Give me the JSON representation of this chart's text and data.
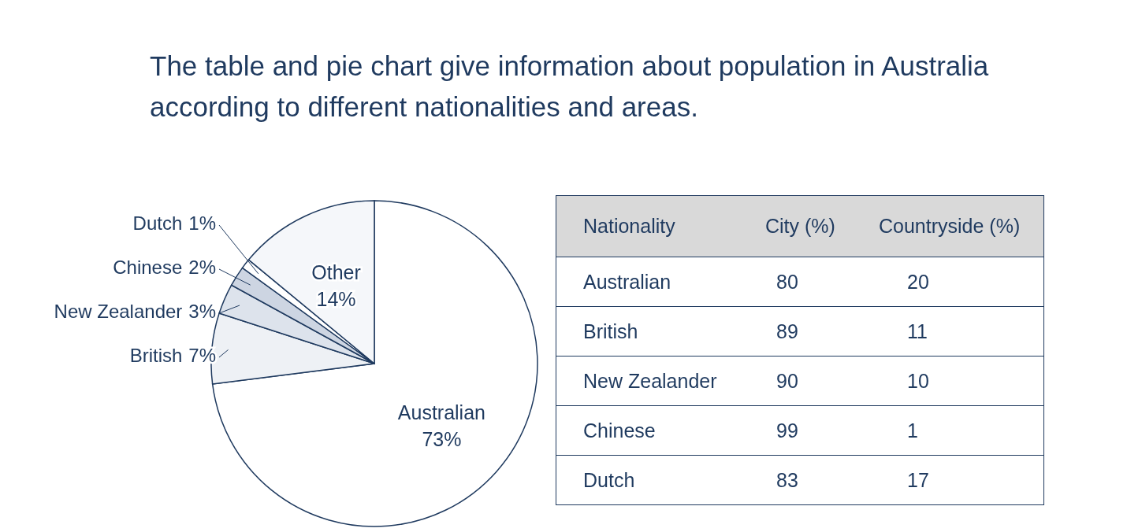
{
  "chart_data": [
    {
      "type": "pie",
      "title": "The table and pie chart give information about population in Australia according to different nationalities and areas.",
      "categories": [
        "Australian",
        "British",
        "New Zealander",
        "Chinese",
        "Dutch",
        "Other"
      ],
      "values": [
        73,
        7,
        3,
        2,
        1,
        14
      ],
      "value_labels": [
        "73%",
        "7%",
        "3%",
        "2%",
        "1%",
        "14%"
      ],
      "colors": [
        "#ffffff",
        "#eef1f5",
        "#dde3ec",
        "#cdd5e2",
        "#ffffff",
        "#f5f7fa"
      ]
    },
    {
      "type": "heatmap",
      "ylabel": "Nationality",
      "categories": [
        "City (%)",
        "Countryside (%)"
      ],
      "y_categories": [
        "Australian",
        "British",
        "New Zealander",
        "Chinese",
        "Dutch"
      ],
      "cells": [
        [
          80,
          20
        ],
        [
          89,
          11
        ],
        [
          90,
          10
        ],
        [
          99,
          1
        ],
        [
          83,
          17
        ]
      ],
      "data_labels": true
    }
  ]
}
